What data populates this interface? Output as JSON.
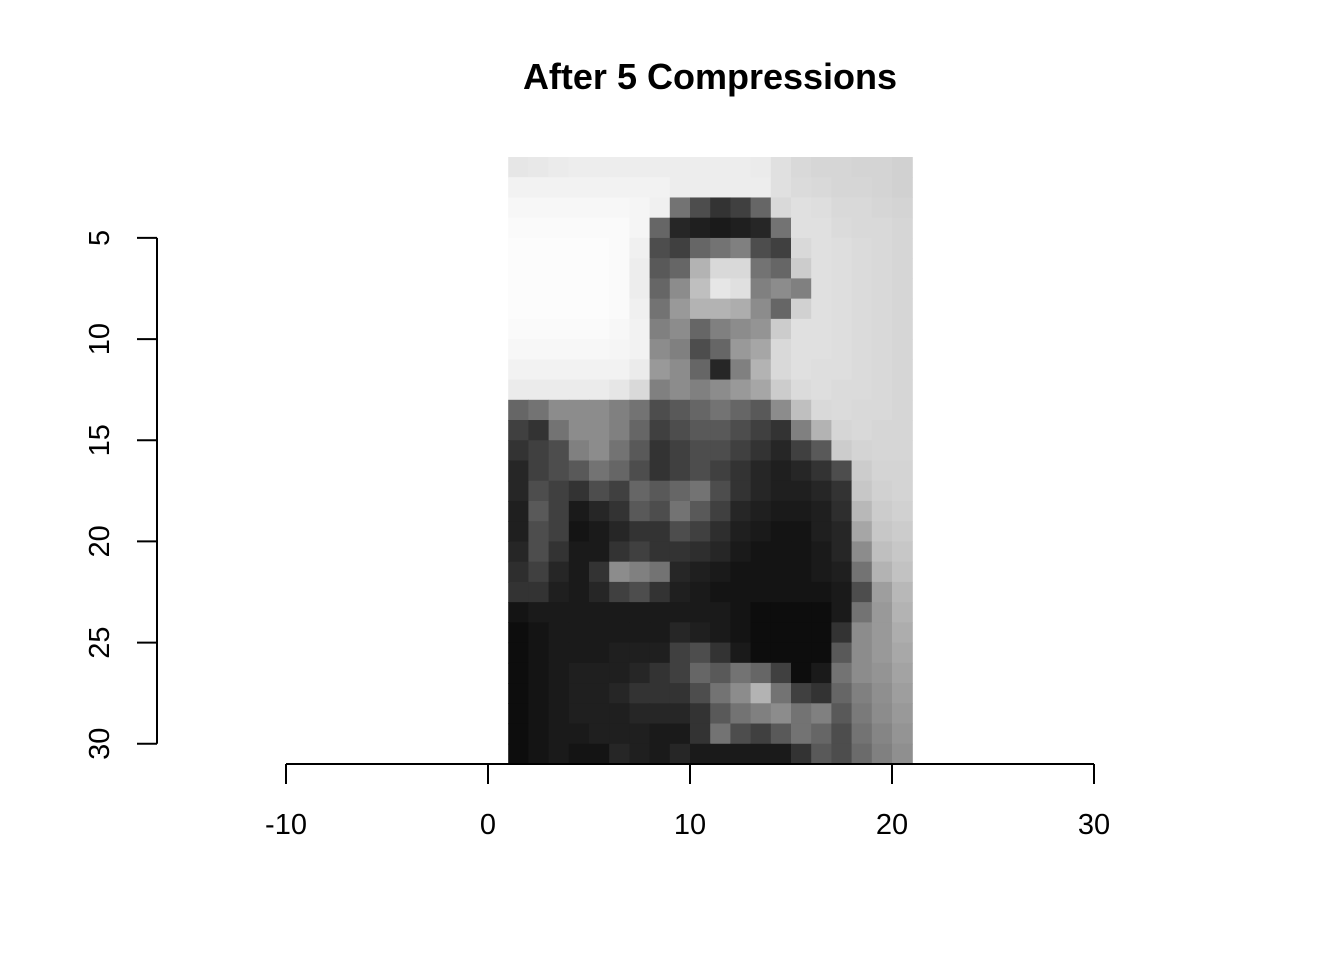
{
  "chart_data": {
    "type": "heatmap",
    "title": "After 5 Compressions",
    "xlabel": "",
    "ylabel": "",
    "xlim": [
      -10,
      30
    ],
    "ylim": [
      31,
      1
    ],
    "x_ticks": [
      -10,
      0,
      10,
      20,
      30
    ],
    "y_ticks": [
      5,
      10,
      15,
      20,
      25,
      30
    ],
    "x_tick_labels": [
      "-10",
      "0",
      "10",
      "20",
      "30"
    ],
    "y_tick_labels": [
      "5",
      "10",
      "15",
      "20",
      "25",
      "30"
    ],
    "grid": false,
    "colormap": "grayscale",
    "image_extent": {
      "x": [
        1,
        21
      ],
      "y": [
        1,
        31
      ]
    },
    "columns": 20,
    "rows": 30,
    "values": [
      [
        0.9,
        0.91,
        0.92,
        0.93,
        0.93,
        0.93,
        0.93,
        0.93,
        0.93,
        0.93,
        0.93,
        0.93,
        0.92,
        0.88,
        0.85,
        0.84,
        0.84,
        0.83,
        0.83,
        0.82
      ],
      [
        0.95,
        0.95,
        0.95,
        0.95,
        0.95,
        0.95,
        0.95,
        0.95,
        0.93,
        0.93,
        0.93,
        0.93,
        0.93,
        0.88,
        0.86,
        0.85,
        0.84,
        0.84,
        0.83,
        0.82
      ],
      [
        0.97,
        0.97,
        0.97,
        0.97,
        0.97,
        0.97,
        0.96,
        0.94,
        0.45,
        0.3,
        0.2,
        0.25,
        0.4,
        0.85,
        0.88,
        0.87,
        0.85,
        0.85,
        0.84,
        0.83
      ],
      [
        0.98,
        0.98,
        0.98,
        0.98,
        0.98,
        0.98,
        0.96,
        0.4,
        0.15,
        0.12,
        0.1,
        0.12,
        0.15,
        0.45,
        0.88,
        0.88,
        0.86,
        0.85,
        0.85,
        0.84
      ],
      [
        0.99,
        0.99,
        0.99,
        0.99,
        0.99,
        0.98,
        0.94,
        0.3,
        0.25,
        0.4,
        0.45,
        0.5,
        0.3,
        0.25,
        0.85,
        0.88,
        0.87,
        0.86,
        0.85,
        0.84
      ],
      [
        0.99,
        0.99,
        0.99,
        0.99,
        0.99,
        0.98,
        0.93,
        0.35,
        0.4,
        0.7,
        0.85,
        0.85,
        0.45,
        0.4,
        0.8,
        0.88,
        0.87,
        0.86,
        0.85,
        0.84
      ],
      [
        0.99,
        0.99,
        0.99,
        0.99,
        0.99,
        0.98,
        0.93,
        0.4,
        0.55,
        0.75,
        0.9,
        0.88,
        0.5,
        0.55,
        0.5,
        0.88,
        0.87,
        0.86,
        0.85,
        0.84
      ],
      [
        0.99,
        0.99,
        0.99,
        0.99,
        0.99,
        0.98,
        0.94,
        0.45,
        0.6,
        0.7,
        0.7,
        0.68,
        0.55,
        0.4,
        0.82,
        0.88,
        0.87,
        0.86,
        0.85,
        0.84
      ],
      [
        0.98,
        0.98,
        0.98,
        0.98,
        0.98,
        0.97,
        0.95,
        0.5,
        0.55,
        0.4,
        0.5,
        0.55,
        0.58,
        0.8,
        0.88,
        0.88,
        0.87,
        0.86,
        0.85,
        0.84
      ],
      [
        0.97,
        0.97,
        0.97,
        0.97,
        0.97,
        0.96,
        0.95,
        0.55,
        0.5,
        0.3,
        0.4,
        0.6,
        0.65,
        0.85,
        0.88,
        0.88,
        0.87,
        0.86,
        0.85,
        0.84
      ],
      [
        0.95,
        0.95,
        0.95,
        0.95,
        0.95,
        0.95,
        0.92,
        0.6,
        0.55,
        0.4,
        0.15,
        0.5,
        0.7,
        0.85,
        0.88,
        0.87,
        0.87,
        0.86,
        0.85,
        0.84
      ],
      [
        0.92,
        0.92,
        0.92,
        0.92,
        0.92,
        0.9,
        0.85,
        0.5,
        0.55,
        0.5,
        0.55,
        0.6,
        0.65,
        0.8,
        0.86,
        0.87,
        0.86,
        0.86,
        0.85,
        0.84
      ],
      [
        0.4,
        0.45,
        0.55,
        0.55,
        0.55,
        0.5,
        0.45,
        0.3,
        0.35,
        0.4,
        0.45,
        0.4,
        0.35,
        0.55,
        0.75,
        0.85,
        0.86,
        0.85,
        0.85,
        0.84
      ],
      [
        0.25,
        0.2,
        0.45,
        0.55,
        0.55,
        0.5,
        0.4,
        0.25,
        0.3,
        0.35,
        0.35,
        0.3,
        0.25,
        0.2,
        0.5,
        0.7,
        0.84,
        0.85,
        0.84,
        0.84
      ],
      [
        0.2,
        0.25,
        0.3,
        0.5,
        0.55,
        0.45,
        0.35,
        0.2,
        0.25,
        0.3,
        0.3,
        0.25,
        0.2,
        0.15,
        0.25,
        0.35,
        0.8,
        0.83,
        0.84,
        0.84
      ],
      [
        0.15,
        0.25,
        0.3,
        0.35,
        0.45,
        0.4,
        0.3,
        0.2,
        0.25,
        0.3,
        0.25,
        0.2,
        0.15,
        0.12,
        0.15,
        0.2,
        0.3,
        0.8,
        0.83,
        0.83
      ],
      [
        0.15,
        0.3,
        0.25,
        0.2,
        0.3,
        0.25,
        0.4,
        0.35,
        0.4,
        0.45,
        0.3,
        0.2,
        0.15,
        0.12,
        0.12,
        0.15,
        0.2,
        0.78,
        0.82,
        0.83
      ],
      [
        0.12,
        0.35,
        0.25,
        0.1,
        0.15,
        0.2,
        0.35,
        0.3,
        0.45,
        0.35,
        0.25,
        0.15,
        0.12,
        0.1,
        0.1,
        0.12,
        0.18,
        0.72,
        0.8,
        0.82
      ],
      [
        0.12,
        0.3,
        0.25,
        0.08,
        0.1,
        0.15,
        0.2,
        0.2,
        0.3,
        0.25,
        0.18,
        0.12,
        0.1,
        0.08,
        0.08,
        0.12,
        0.15,
        0.65,
        0.78,
        0.8
      ],
      [
        0.15,
        0.3,
        0.2,
        0.1,
        0.1,
        0.2,
        0.25,
        0.2,
        0.2,
        0.18,
        0.15,
        0.1,
        0.08,
        0.08,
        0.08,
        0.1,
        0.15,
        0.55,
        0.75,
        0.78
      ],
      [
        0.18,
        0.25,
        0.15,
        0.1,
        0.2,
        0.55,
        0.5,
        0.45,
        0.15,
        0.12,
        0.1,
        0.08,
        0.08,
        0.08,
        0.08,
        0.1,
        0.12,
        0.45,
        0.7,
        0.76
      ],
      [
        0.2,
        0.2,
        0.12,
        0.1,
        0.15,
        0.25,
        0.3,
        0.2,
        0.12,
        0.1,
        0.08,
        0.08,
        0.08,
        0.08,
        0.08,
        0.08,
        0.1,
        0.3,
        0.62,
        0.72
      ],
      [
        0.08,
        0.1,
        0.1,
        0.1,
        0.1,
        0.1,
        0.1,
        0.1,
        0.1,
        0.1,
        0.1,
        0.08,
        0.05,
        0.05,
        0.05,
        0.05,
        0.1,
        0.45,
        0.6,
        0.7
      ],
      [
        0.05,
        0.08,
        0.1,
        0.1,
        0.1,
        0.1,
        0.1,
        0.1,
        0.15,
        0.12,
        0.1,
        0.08,
        0.05,
        0.05,
        0.05,
        0.05,
        0.2,
        0.55,
        0.6,
        0.68
      ],
      [
        0.05,
        0.08,
        0.1,
        0.1,
        0.1,
        0.12,
        0.12,
        0.12,
        0.25,
        0.3,
        0.2,
        0.1,
        0.05,
        0.05,
        0.05,
        0.05,
        0.35,
        0.55,
        0.6,
        0.66
      ],
      [
        0.05,
        0.08,
        0.1,
        0.12,
        0.12,
        0.12,
        0.15,
        0.2,
        0.25,
        0.4,
        0.35,
        0.45,
        0.4,
        0.25,
        0.05,
        0.1,
        0.45,
        0.55,
        0.58,
        0.64
      ],
      [
        0.05,
        0.08,
        0.1,
        0.12,
        0.12,
        0.15,
        0.2,
        0.2,
        0.2,
        0.3,
        0.45,
        0.55,
        0.7,
        0.45,
        0.25,
        0.2,
        0.4,
        0.5,
        0.56,
        0.62
      ],
      [
        0.05,
        0.08,
        0.1,
        0.12,
        0.12,
        0.12,
        0.15,
        0.15,
        0.15,
        0.2,
        0.35,
        0.45,
        0.5,
        0.55,
        0.45,
        0.5,
        0.35,
        0.48,
        0.55,
        0.6
      ],
      [
        0.05,
        0.08,
        0.1,
        0.1,
        0.12,
        0.12,
        0.12,
        0.1,
        0.1,
        0.2,
        0.45,
        0.3,
        0.25,
        0.35,
        0.45,
        0.4,
        0.3,
        0.45,
        0.52,
        0.58
      ],
      [
        0.05,
        0.08,
        0.1,
        0.08,
        0.08,
        0.15,
        0.12,
        0.1,
        0.15,
        0.1,
        0.1,
        0.1,
        0.1,
        0.1,
        0.2,
        0.35,
        0.3,
        0.42,
        0.5,
        0.56
      ]
    ]
  }
}
